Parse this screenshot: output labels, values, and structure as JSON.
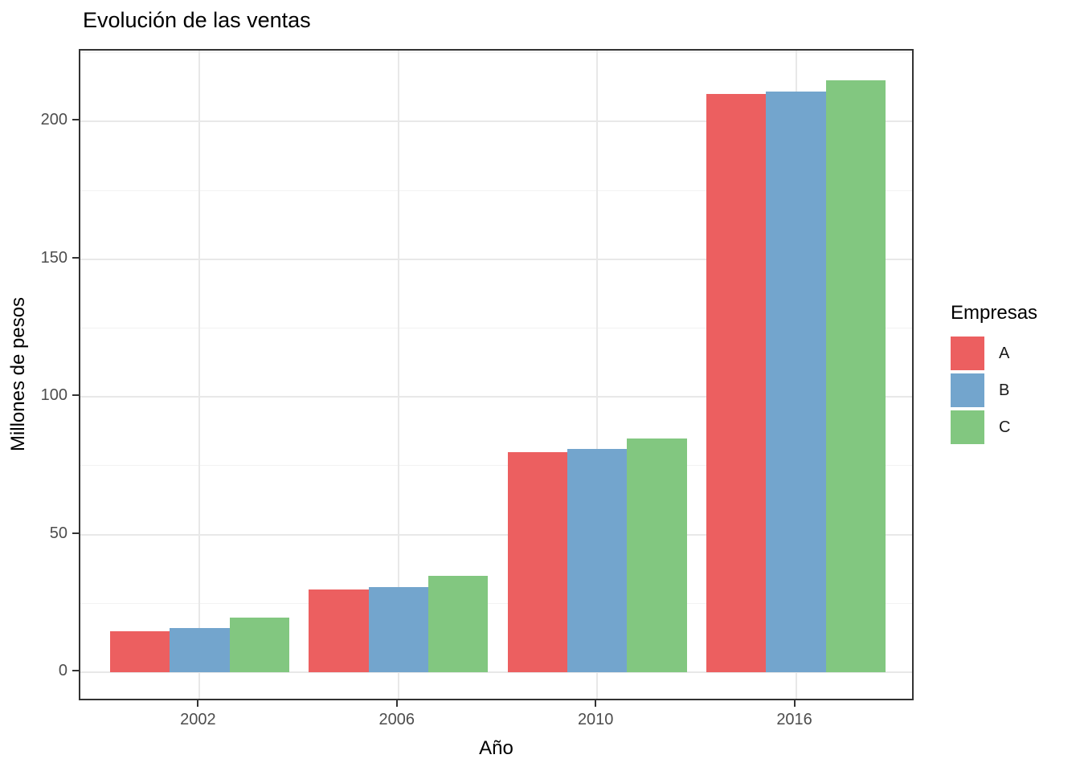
{
  "title": "Evolución de las ventas",
  "chart_data": {
    "type": "bar",
    "title": "Evolución de las ventas",
    "xlabel": "Año",
    "ylabel": "Millones de pesos",
    "legend_title": "Empresas",
    "legend_position": "right",
    "categories": [
      "2002",
      "2006",
      "2010",
      "2016"
    ],
    "series": [
      {
        "name": "A",
        "color": "#ec5f60",
        "values": [
          15,
          30,
          80,
          210
        ]
      },
      {
        "name": "B",
        "color": "#73a5cd",
        "values": [
          16,
          31,
          81,
          211
        ]
      },
      {
        "name": "C",
        "color": "#82c780",
        "values": [
          20,
          35,
          85,
          215
        ]
      }
    ],
    "ylim": [
      0,
      225
    ],
    "yticks": [
      0,
      50,
      100,
      150,
      200
    ],
    "yticks_minor": [
      25,
      75,
      125,
      175,
      225
    ],
    "grid": true
  },
  "colors": {
    "panel_border": "#333333",
    "gridline_major": "#e8e8e8",
    "gridline_minor": "#f2f2f2",
    "tick_label": "#4d4d4d",
    "text": "#000000",
    "background": "#ffffff"
  }
}
